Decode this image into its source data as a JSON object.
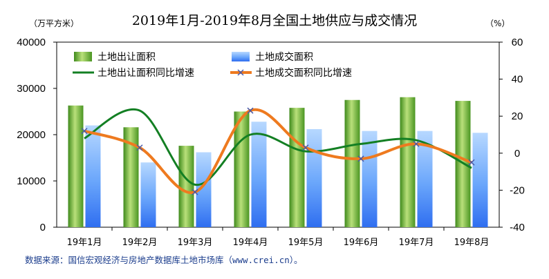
{
  "chart_data": {
    "type": "bar-line",
    "title": "2019年1月-2019年8月全国土地供应与成交情况",
    "left_unit": "（万平方米）",
    "right_unit": "（%）",
    "categories": [
      "19年1月",
      "19年2月",
      "19年3月",
      "19年4月",
      "19年5月",
      "19年6月",
      "19年7月",
      "19年8月"
    ],
    "left_axis": {
      "min": 0,
      "max": 40000,
      "ticks": [
        "0",
        "10000",
        "20000",
        "30000",
        "40000"
      ]
    },
    "right_axis": {
      "min": -40,
      "max": 60,
      "ticks": [
        "-40",
        "-20",
        "0",
        "20",
        "40",
        "60"
      ]
    },
    "bar_series": [
      {
        "name": "土地出让面积",
        "values": [
          26300,
          21600,
          17600,
          25000,
          25800,
          27500,
          28100,
          27300
        ]
      },
      {
        "name": "土地成交面积",
        "values": [
          22000,
          14000,
          16200,
          22800,
          21200,
          20800,
          20800,
          20400
        ]
      }
    ],
    "line_series": [
      {
        "name": "土地出让面积同比增速",
        "values": [
          8,
          23,
          -17,
          10,
          1,
          5,
          7,
          -8
        ]
      },
      {
        "name": "土地成交面积同比增速",
        "values": [
          12,
          3,
          -21,
          23,
          3,
          -3,
          5,
          -5
        ]
      }
    ],
    "colors": {
      "bar1": "#6fae2f",
      "bar2": "#4f8ff7",
      "line1": "#137f23",
      "line2": "#ee7a1f",
      "marker": "#4a5aa8",
      "frame": "#000000"
    },
    "legend_placement": "top",
    "grid": false
  },
  "source_text": "数据来源：国信宏观经济与房地产数据库土地市场库（www.crei.cn）。"
}
